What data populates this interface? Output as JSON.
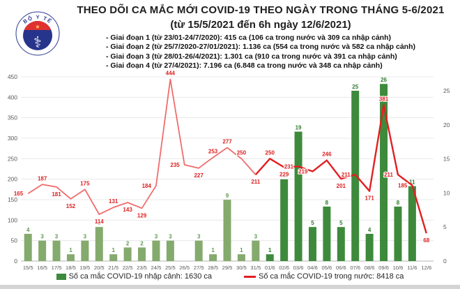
{
  "header": {
    "title_line1": "THEO DÕI CA MẮC MỚI COVID-19 THEO NGÀY TRONG THÁNG 5-6/2021",
    "title_line2": "(từ 15/5/2021 đến 6h ngày 12/6/2021)",
    "phases": [
      "- Giai đoạn 1 (từ 23/01-24/7/2020): 415 ca (106 ca trong nước và 309 ca nhập cảnh)",
      "- Giai đoạn 2 (từ 25/7/2020-27/01/2021): 1.136 ca (554 ca trong nước và 582 ca nhập cảnh)",
      "- Giai đoạn 3 (từ 28/01-26/4/2021): 1.301 ca (910 ca trong nước và 391 ca nhập cảnh)",
      "- Giai đoạn 4 (từ 27/4/2021): 7.196 ca (6.848 ca trong nước và 348 ca nhập cảnh)"
    ],
    "logo": {
      "top_arc": "BỘ Y TẾ",
      "bottom_arc": "MINISTRY OF HEALTH",
      "star": "★",
      "staff": "⚕"
    }
  },
  "legend": {
    "bar_label": "Số ca mắc COVID-19 nhập cảnh: 1630 ca",
    "line_label": "Số ca mắc COVID-19 trong nước: 8418 ca"
  },
  "chart_data": {
    "type": "bar+line",
    "categories": [
      "15/5",
      "16/5",
      "17/5",
      "18/5",
      "19/5",
      "20/5",
      "21/5",
      "22/5",
      "23/5",
      "24/5",
      "25/5",
      "26/5",
      "27/5",
      "28/5",
      "29/5",
      "30/5",
      "31/5",
      "01/6",
      "02/6",
      "03/6",
      "04/6",
      "05/6",
      "06/6",
      "07/6",
      "08/6",
      "09/6",
      "10/6",
      "11/6",
      "12/6"
    ],
    "series": [
      {
        "name": "Số ca mắc COVID-19 nhập cảnh",
        "type": "bar",
        "axis": "right",
        "values": [
          4,
          3,
          3,
          1,
          3,
          5,
          1,
          2,
          2,
          3,
          3,
          0,
          3,
          1,
          9,
          1,
          3,
          1,
          12,
          19,
          5,
          8,
          5,
          25,
          4,
          26,
          8,
          11,
          0
        ]
      },
      {
        "name": "Số ca mắc COVID-19 trong nước",
        "type": "line",
        "axis": "left",
        "values": [
          165,
          187,
          181,
          152,
          175,
          114,
          131,
          143,
          129,
          184,
          444,
          235,
          227,
          253,
          277,
          250,
          211,
          250,
          229,
          231,
          219,
          246,
          201,
          211,
          171,
          381,
          211,
          185,
          68
        ],
        "label_pos": [
          "left",
          "above",
          "below",
          "below",
          "above",
          "below",
          "above",
          "below",
          "below",
          "left",
          "above",
          "left",
          "below",
          "above",
          "above",
          "above",
          "below",
          "above",
          "below",
          "left",
          "left",
          "above",
          "below",
          "left",
          "below",
          "above",
          "left",
          "left",
          "below"
        ]
      }
    ],
    "june_start_index": 17,
    "y_left": {
      "ticks": [
        0,
        50,
        100,
        150,
        200,
        250,
        300,
        350,
        400,
        450
      ],
      "range": [
        0,
        450
      ]
    },
    "y_right": {
      "ticks": [
        0,
        5,
        10,
        15,
        20,
        25
      ],
      "range": [
        0,
        25
      ]
    },
    "grid": true,
    "legend_position": "bottom",
    "style": {
      "bar_may": "#85aa6d",
      "bar_june": "#3e8a3c",
      "bar_label_may": "#5f9a52",
      "bar_label_june": "#2e7d2f",
      "line_may": "#f16c6c",
      "line_june": "#e11f22",
      "line_label": "#dd1f1f",
      "axis_text": "#595959",
      "grid_line": "#e8e8e8",
      "base_line": "#b5b5b5",
      "logo_blue": "#2b3a8f",
      "logo_red": "#e03131",
      "logo_gold": "#ffd24d"
    }
  }
}
